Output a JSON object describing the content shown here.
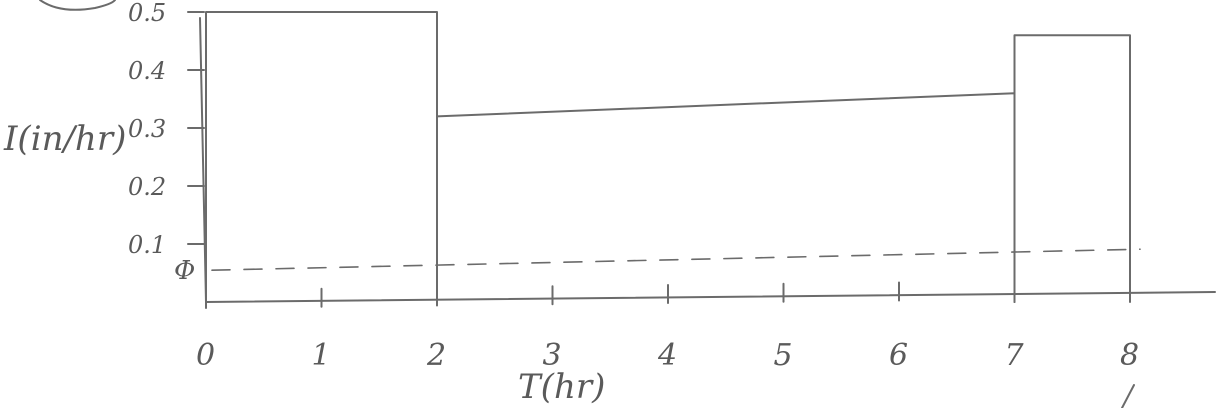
{
  "chart_data": {
    "type": "bar",
    "ylabel": "I(in/hr)",
    "xlabel": "T(hr)",
    "x_ticks": [
      "0",
      "1",
      "2",
      "3",
      "4",
      "5",
      "6",
      "7",
      "8"
    ],
    "y_ticks": [
      "0.1",
      "0.2",
      "0.3",
      "0.4",
      "0.5"
    ],
    "phi_label": "Φ",
    "phi_value": 0.06,
    "ylim": [
      0,
      0.5
    ],
    "xlim": [
      0,
      8
    ],
    "bins": [
      {
        "x0": 0,
        "x1": 2,
        "value": 0.5
      },
      {
        "x0": 2,
        "x1": 7,
        "value_start": 0.32,
        "value_end": 0.36
      },
      {
        "x0": 7,
        "x1": 8,
        "value": 0.46
      }
    ]
  }
}
